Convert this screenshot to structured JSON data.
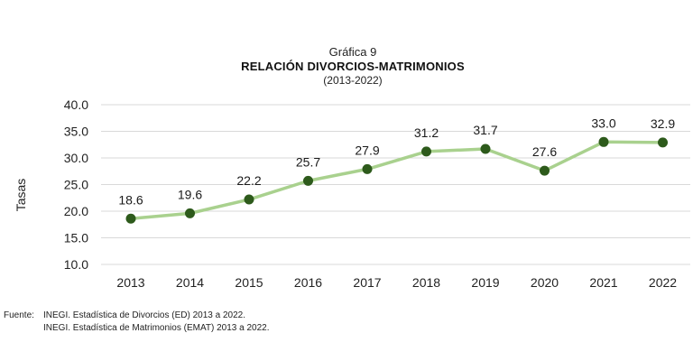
{
  "header": {
    "kicker": "Gráfica 9",
    "title": "RELACIÓN DIVORCIOS-MATRIMONIOS",
    "subtitle": "(2013-2022)"
  },
  "chart_data": {
    "type": "line",
    "ylabel": "Tasas",
    "xlabel": "",
    "categories": [
      "2013",
      "2014",
      "2015",
      "2016",
      "2017",
      "2018",
      "2019",
      "2020",
      "2021",
      "2022"
    ],
    "series": [
      {
        "values": [
          18.6,
          19.6,
          22.2,
          25.7,
          27.9,
          31.2,
          31.7,
          27.6,
          33.0,
          32.9
        ]
      }
    ],
    "data_labels": [
      "18.6",
      "19.6",
      "22.2",
      "25.7",
      "27.9",
      "31.2",
      "31.7",
      "27.6",
      "33.0",
      "32.9"
    ],
    "ylim": [
      10,
      40
    ],
    "yticks": [
      10,
      15,
      20,
      25,
      30,
      35,
      40
    ],
    "ytick_labels": [
      "10.0",
      "15.0",
      "20.0",
      "25.0",
      "30.0",
      "35.0",
      "40.0"
    ],
    "grid": true,
    "line_color": "#a9d18e",
    "marker_color": "#2d5a1b",
    "grid_color": "#d9d9d9"
  },
  "source": {
    "label": "Fuente:",
    "lines": [
      "INEGI. Estadística de Divorcios (ED) 2013 a 2022.",
      "INEGI. Estadística de Matrimonios (EMAT) 2013 a 2022."
    ]
  }
}
